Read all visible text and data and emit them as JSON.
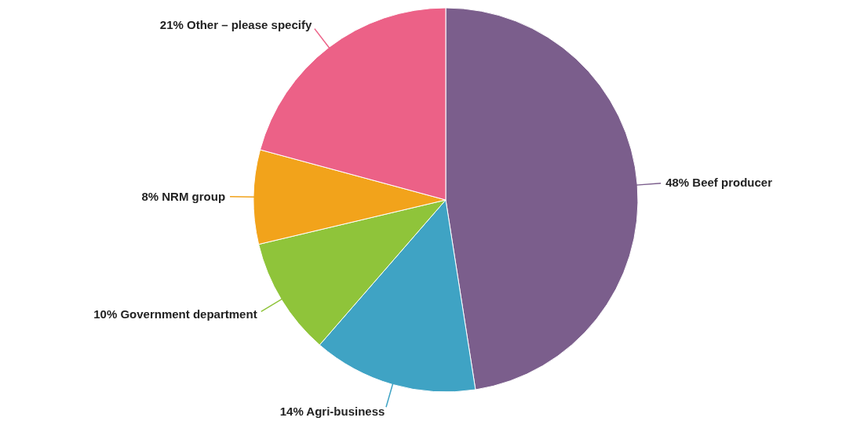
{
  "chart_data": {
    "type": "pie",
    "categories": [
      "Beef producer",
      "Agri-business",
      "Government department",
      "NRM group",
      "Other – please specify"
    ],
    "values": [
      48,
      14,
      10,
      8,
      21
    ],
    "value_labels": [
      "48%",
      "14%",
      "10%",
      "8%",
      "21%"
    ],
    "colors": [
      "#7b5e8c",
      "#3fa3c4",
      "#8fc43a",
      "#f2a31b",
      "#ec6187"
    ]
  }
}
